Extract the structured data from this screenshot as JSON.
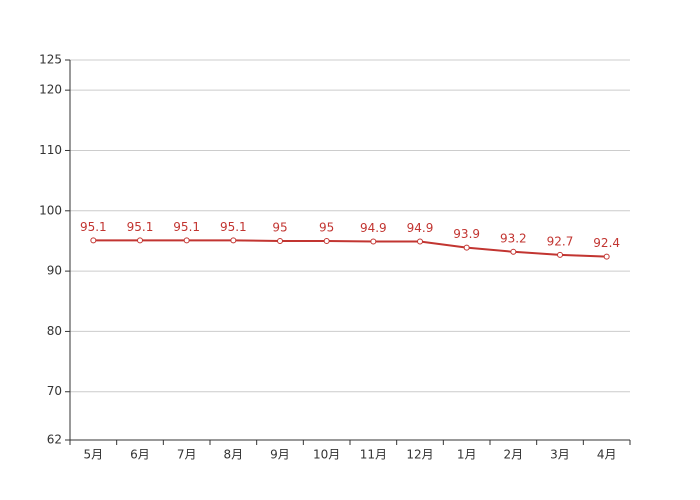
{
  "chart_data": {
    "type": "line",
    "categories": [
      "5月",
      "6月",
      "7月",
      "8月",
      "9月",
      "10月",
      "11月",
      "12月",
      "1月",
      "2月",
      "3月",
      "4月"
    ],
    "series": [
      {
        "name": "",
        "color": "#c23531",
        "values": [
          95.1,
          95.1,
          95.1,
          95.1,
          95,
          95,
          94.9,
          94.9,
          93.9,
          93.2,
          92.7,
          92.4
        ]
      }
    ],
    "ylim": [
      62,
      125
    ],
    "yticks": [
      62,
      70,
      80,
      90,
      100,
      110,
      120,
      125
    ],
    "grid": true
  }
}
